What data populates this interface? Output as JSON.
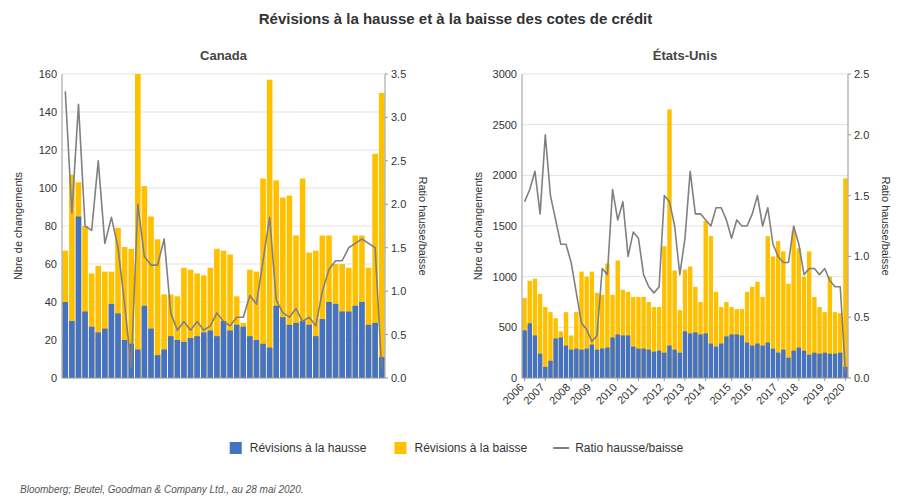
{
  "chart_data": [
    {
      "type": "bar",
      "title": "Révisions à la hausse et à la baisse des cotes de crédit",
      "subtitle": "Canada",
      "ylabel": "Nbre de changements",
      "y2label": "Ratio hausse/baisse",
      "annotations": [
        "Bloomberg; Beutel, Goodman & Company Ltd., au 28 mai 2020."
      ],
      "categories": [
        null,
        null,
        null,
        null,
        null,
        null,
        null,
        null,
        null,
        null,
        null,
        null,
        null,
        null,
        null,
        null,
        null,
        null,
        null,
        null,
        null,
        null,
        null,
        null,
        null,
        null,
        null,
        null,
        null,
        null,
        null,
        null,
        null,
        null,
        null,
        null,
        null,
        null,
        null,
        null,
        null,
        null,
        null,
        null,
        null,
        null,
        null,
        null,
        null
      ],
      "ylim": [
        0,
        160
      ],
      "yticks": [
        0,
        20,
        40,
        60,
        80,
        100,
        120,
        140,
        160
      ],
      "y2lim": [
        0,
        3.5
      ],
      "y2ticks": [
        {
          "value": 0,
          "label": "0.0"
        },
        0.5,
        {
          "value": 1,
          "label": "1.0"
        },
        1.5,
        {
          "value": 2,
          "label": "2.0"
        },
        2.5,
        {
          "value": 3,
          "label": "3.0"
        },
        3.5
      ],
      "grid": true,
      "legend": "bottom",
      "tick_labels": "y",
      "series": [
        {
          "name": "Révisions à la hausse",
          "type": "bar",
          "color": "#4472C4",
          "values": [
            40,
            30,
            85,
            35,
            27,
            24,
            26,
            39,
            34,
            20,
            18,
            15,
            38,
            26,
            12,
            15,
            22,
            20,
            19,
            21,
            22,
            24,
            25,
            22,
            30,
            25,
            28,
            27,
            22,
            20,
            18,
            16,
            38,
            32,
            28,
            29,
            30,
            28,
            22,
            31,
            40,
            39,
            35,
            35,
            38,
            40,
            28,
            29,
            11
          ]
        },
        {
          "name": "Révisions à la baisse",
          "type": "bar",
          "color": "#FFC000",
          "values": [
            67,
            107,
            103,
            80,
            55,
            59,
            56,
            56,
            79,
            69,
            68,
            160,
            101,
            85,
            73,
            44,
            44,
            43,
            58,
            57,
            55,
            54,
            58,
            68,
            67,
            65,
            43,
            29,
            57,
            56,
            105,
            157,
            104,
            95,
            96,
            75,
            105,
            66,
            67,
            75,
            75,
            60,
            60,
            58,
            75,
            75,
            58,
            118,
            150
          ]
        },
        {
          "name": "Ratio hausse/baisse",
          "type": "line",
          "axis": "y2",
          "color": "#808080",
          "values": [
            3.3,
            1.9,
            3.15,
            1.75,
            1.7,
            2.5,
            1.55,
            1.85,
            1.5,
            0.85,
            0.12,
            2.0,
            1.4,
            1.3,
            1.3,
            1.6,
            0.75,
            0.55,
            0.65,
            0.55,
            0.65,
            0.55,
            0.6,
            0.75,
            0.65,
            0.6,
            0.7,
            0.7,
            0.95,
            0.85,
            1.35,
            1.85,
            0.9,
            0.75,
            0.7,
            0.8,
            0.65,
            0.7,
            0.6,
            1.0,
            1.25,
            1.35,
            1.35,
            1.5,
            1.55,
            1.6,
            1.55,
            1.5,
            0.1
          ]
        }
      ]
    },
    {
      "type": "bar",
      "subtitle": "États-Unis",
      "ylabel": "Nbre de changements",
      "y2label": "Ratio hausse/baisse",
      "categories": [
        "2006",
        null,
        null,
        null,
        "2007",
        null,
        null,
        null,
        null,
        "2008",
        null,
        null,
        null,
        "2009",
        null,
        null,
        null,
        null,
        "2010",
        null,
        null,
        null,
        "2011",
        null,
        null,
        null,
        null,
        "2012",
        null,
        null,
        null,
        "2013",
        null,
        null,
        null,
        "2014",
        null,
        null,
        null,
        null,
        "2015",
        null,
        null,
        null,
        "2016",
        null,
        null,
        null,
        null,
        "2017",
        null,
        null,
        null,
        "2018",
        null,
        null,
        null,
        null,
        "2019",
        null,
        null,
        null,
        "2020"
      ],
      "ylim": [
        0,
        3000
      ],
      "yticks": [
        0,
        500,
        1000,
        1500,
        2000,
        2500,
        3000
      ],
      "y2lim": [
        0,
        2.5
      ],
      "y2ticks": [
        {
          "value": 0,
          "label": "0.0"
        },
        0.5,
        {
          "value": 1,
          "label": "1.0"
        },
        1.5,
        {
          "value": 2,
          "label": "2.0"
        },
        2.5
      ],
      "grid": true,
      "series": [
        {
          "type": "bar",
          "color": "#4472C4",
          "values": [
            470,
            540,
            420,
            240,
            110,
            170,
            390,
            400,
            320,
            280,
            290,
            280,
            290,
            330,
            280,
            290,
            300,
            400,
            430,
            420,
            420,
            310,
            290,
            290,
            280,
            260,
            270,
            250,
            320,
            280,
            250,
            460,
            440,
            450,
            430,
            440,
            340,
            310,
            340,
            410,
            430,
            430,
            420,
            350,
            320,
            340,
            320,
            350,
            290,
            250,
            280,
            200,
            270,
            300,
            270,
            230,
            250,
            240,
            250,
            240,
            240,
            250,
            110
          ]
        },
        {
          "type": "bar",
          "color": "#FFC000",
          "values": [
            790,
            960,
            980,
            830,
            700,
            650,
            590,
            460,
            650,
            420,
            650,
            1050,
            1000,
            1050,
            840,
            820,
            1130,
            820,
            1160,
            870,
            850,
            800,
            800,
            800,
            750,
            700,
            700,
            1300,
            2650,
            1060,
            670,
            1070,
            1100,
            900,
            750,
            1550,
            1400,
            850,
            700,
            750,
            700,
            680,
            680,
            850,
            900,
            950,
            800,
            1400,
            1200,
            1350,
            1250,
            930,
            1450,
            1280,
            1000,
            1250,
            800,
            700,
            650,
            1000,
            650,
            640,
            1970
          ]
        },
        {
          "type": "line",
          "axis": "y2",
          "color": "#808080",
          "values": [
            1.45,
            1.55,
            1.7,
            1.35,
            2.0,
            1.5,
            1.3,
            1.1,
            1.1,
            0.95,
            0.7,
            0.45,
            0.4,
            0.3,
            0.35,
            0.9,
            0.85,
            1.55,
            1.3,
            1.45,
            1.0,
            1.2,
            1.15,
            0.85,
            0.75,
            0.7,
            0.75,
            1.5,
            1.45,
            1.25,
            0.85,
            1.15,
            1.7,
            1.35,
            1.35,
            1.3,
            1.25,
            1.4,
            1.4,
            1.3,
            1.15,
            1.3,
            1.25,
            1.25,
            1.35,
            1.5,
            1.25,
            1.4,
            1.1,
            1.0,
            0.95,
            0.95,
            1.25,
            1.1,
            0.85,
            0.9,
            0.9,
            0.85,
            0.9,
            0.8,
            0.75,
            0.75,
            0.05
          ]
        }
      ]
    }
  ]
}
